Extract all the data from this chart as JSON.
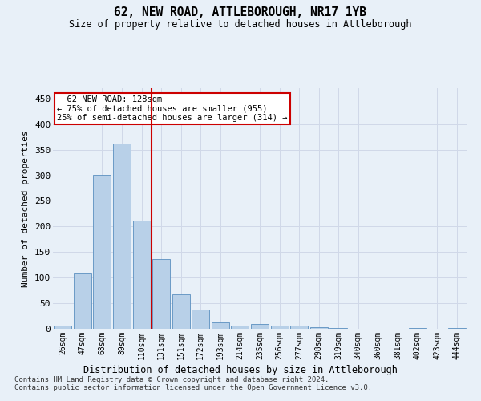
{
  "title": "62, NEW ROAD, ATTLEBOROUGH, NR17 1YB",
  "subtitle": "Size of property relative to detached houses in Attleborough",
  "xlabel": "Distribution of detached houses by size in Attleborough",
  "ylabel": "Number of detached properties",
  "footnote1": "Contains HM Land Registry data © Crown copyright and database right 2024.",
  "footnote2": "Contains public sector information licensed under the Open Government Licence v3.0.",
  "bin_labels": [
    "26sqm",
    "47sqm",
    "68sqm",
    "89sqm",
    "110sqm",
    "131sqm",
    "151sqm",
    "172sqm",
    "193sqm",
    "214sqm",
    "235sqm",
    "256sqm",
    "277sqm",
    "298sqm",
    "319sqm",
    "340sqm",
    "360sqm",
    "381sqm",
    "402sqm",
    "423sqm",
    "444sqm"
  ],
  "bar_values": [
    7,
    108,
    301,
    362,
    212,
    136,
    68,
    38,
    13,
    7,
    10,
    7,
    6,
    3,
    1,
    0,
    0,
    0,
    2,
    0,
    2
  ],
  "bar_color": "#b8d0e8",
  "bar_edge_color": "#5a8fc0",
  "grid_color": "#d0d8e8",
  "background_color": "#e8f0f8",
  "vline_color": "#cc0000",
  "annotation_box_color": "#ffffff",
  "annotation_box_edge": "#cc0000",
  "ylim": [
    0,
    470
  ],
  "yticks": [
    0,
    50,
    100,
    150,
    200,
    250,
    300,
    350,
    400,
    450
  ]
}
